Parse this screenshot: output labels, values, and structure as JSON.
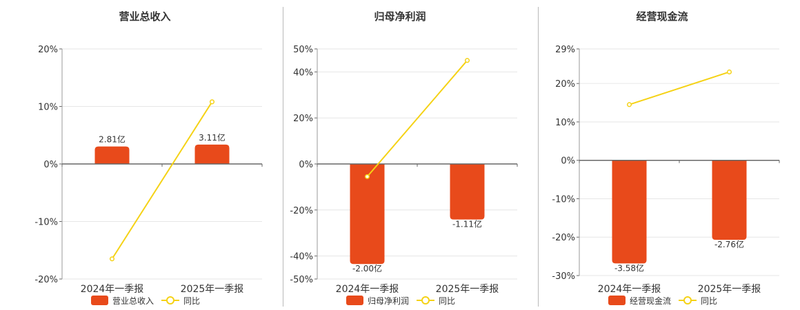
{
  "colors": {
    "bar": "#e84a1b",
    "line": "#f5d215",
    "axis": "#666666",
    "grid": "#e6e6e6"
  },
  "chart_data": [
    {
      "type": "bar",
      "title": "营业总收入",
      "categories": [
        "2024年一季报",
        "2025年一季报"
      ],
      "series": [
        {
          "name": "营业总收入",
          "type": "bar",
          "values": [
            2.81,
            3.11
          ],
          "labels": [
            "2.81亿",
            "3.11亿"
          ]
        },
        {
          "name": "同比",
          "type": "line",
          "values": [
            -16.5,
            10.8
          ]
        }
      ],
      "ylim": [
        -20,
        20
      ],
      "yticks": [
        -20,
        -10,
        0,
        10,
        20
      ],
      "ytick_labels": [
        "-20%",
        "-10%",
        "0%",
        "10%",
        "20%"
      ],
      "bar_axis_range": [
        -18.5,
        18.5
      ],
      "grid": true,
      "legend": "bottom"
    },
    {
      "type": "bar",
      "title": "归母净利润",
      "categories": [
        "2024年一季报",
        "2025年一季报"
      ],
      "series": [
        {
          "name": "归母净利润",
          "type": "bar",
          "values": [
            -2.0,
            -1.11
          ],
          "labels": [
            "-2.00亿",
            "-1.11亿"
          ]
        },
        {
          "name": "同比",
          "type": "line",
          "values": [
            -5.5,
            45.0
          ]
        }
      ],
      "ylim": [
        -50,
        50
      ],
      "yticks": [
        -50,
        -40,
        -20,
        0,
        20,
        40,
        50
      ],
      "ytick_labels": [
        "-50%",
        "-40%",
        "-20%",
        "0%",
        "20%",
        "40%",
        "50%"
      ],
      "bar_axis_range": [
        -2.3,
        2.3
      ],
      "grid": true,
      "legend": "bottom"
    },
    {
      "type": "bar",
      "title": "经营现金流",
      "categories": [
        "2024年一季报",
        "2025年一季报"
      ],
      "series": [
        {
          "name": "经营现金流",
          "type": "bar",
          "values": [
            -3.58,
            -2.76
          ],
          "labels": [
            "-3.58亿",
            "-2.76亿"
          ]
        },
        {
          "name": "同比",
          "type": "line",
          "values": [
            14.5,
            23.0
          ]
        }
      ],
      "ylim": [
        -30,
        29
      ],
      "yticks": [
        -30,
        -20,
        -10,
        0,
        10,
        20,
        29
      ],
      "ytick_labels": [
        "-30%",
        "-20%",
        "-10%",
        "0%",
        "10%",
        "20%",
        "29%"
      ],
      "bar_axis_range": [
        -4.0,
        4.0
      ],
      "grid": true,
      "legend": "bottom"
    }
  ]
}
